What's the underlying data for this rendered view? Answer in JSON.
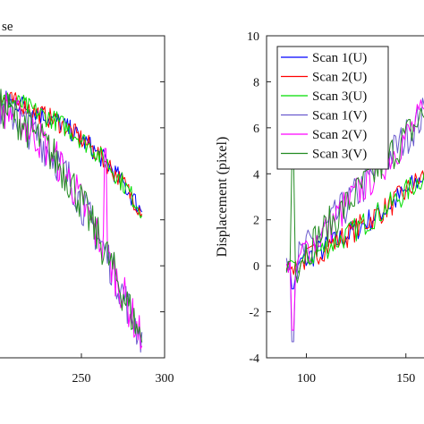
{
  "chart_data": [
    {
      "type": "line",
      "panel": "left",
      "partial_title": "se",
      "xlim": [
        200,
        300
      ],
      "x_ticks": [
        250,
        300
      ],
      "y_ticks": [],
      "series_group_a": {
        "colors": [
          "#0000ff",
          "#ff0000",
          "#00dd00"
        ],
        "x": [
          205,
          215,
          225,
          235,
          245,
          255,
          265,
          275,
          285
        ],
        "values": [
          7.2,
          7.0,
          6.6,
          6.3,
          5.8,
          5.2,
          4.5,
          3.6,
          2.5
        ]
      },
      "series_group_b": {
        "colors": [
          "#6a5acd",
          "#ff00ff",
          "#228b22"
        ],
        "x": [
          205,
          215,
          225,
          235,
          245,
          255,
          265,
          275,
          285
        ],
        "values": [
          6.8,
          6.2,
          5.5,
          4.6,
          3.5,
          2.0,
          0.5,
          -1.2,
          -3.0
        ]
      }
    },
    {
      "type": "line",
      "panel": "right",
      "ylabel": "Displacement (pixel)",
      "ylim": [
        -4,
        10
      ],
      "y_ticks": [
        "10",
        "8",
        "6",
        "4",
        "2",
        "0",
        "-2",
        "-4"
      ],
      "x_ticks": [
        "100",
        "150"
      ],
      "xlim": [
        80,
        160
      ],
      "grid": false,
      "legend_position": "top-left",
      "series": [
        {
          "name": "Scan 1(U)",
          "color": "#0000ff",
          "group": "U"
        },
        {
          "name": "Scan 2(U)",
          "color": "#ff0000",
          "group": "U"
        },
        {
          "name": "Scan 3(U)",
          "color": "#00dd00",
          "group": "U"
        },
        {
          "name": "Scan 1(V)",
          "color": "#6a5acd",
          "group": "V"
        },
        {
          "name": "Scan 2(V)",
          "color": "#ff00ff",
          "group": "V"
        },
        {
          "name": "Scan 3(V)",
          "color": "#228b22",
          "group": "V"
        }
      ],
      "u_trend": {
        "x": [
          90,
          95,
          100,
          110,
          120,
          130,
          140,
          150,
          160
        ],
        "values": [
          0.0,
          0.0,
          0.3,
          0.8,
          1.3,
          1.9,
          2.5,
          3.2,
          4.0
        ]
      },
      "v_trend": {
        "x": [
          90,
          95,
          100,
          110,
          120,
          130,
          140,
          150,
          160
        ],
        "values": [
          0.0,
          0.2,
          0.7,
          1.6,
          2.6,
          3.6,
          4.6,
          5.6,
          6.7
        ]
      }
    }
  ]
}
